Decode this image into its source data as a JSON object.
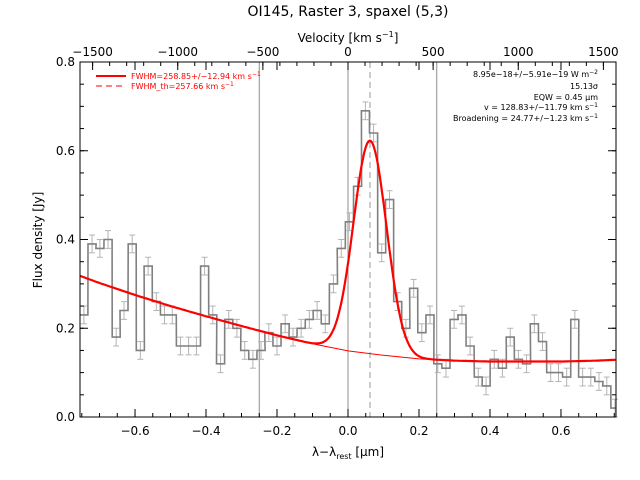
{
  "chart_data": {
    "type": "line",
    "title": "OI145, Raster 3, spaxel (5,3)",
    "xlabel": "λ−λ",
    "xlabel_sub": "rest",
    "xlabel_unit": " [μm]",
    "ylabel": "Flux density [Jy]",
    "top_xlabel": "Velocity [km s",
    "top_xlabel_sup": "−1",
    "top_xlabel_end": "]",
    "xlim": [
      -0.755,
      0.755
    ],
    "ylim": [
      0.0,
      0.8
    ],
    "top_xlim": [
      -1574,
      1574
    ],
    "x_ticks": [
      {
        "value": -0.6,
        "label": "−0.6"
      },
      {
        "value": -0.4,
        "label": "−0.4"
      },
      {
        "value": -0.2,
        "label": "−0.2"
      },
      {
        "value": 0.0,
        "label": "0.0"
      },
      {
        "value": 0.2,
        "label": "0.2"
      },
      {
        "value": 0.4,
        "label": "0.4"
      },
      {
        "value": 0.6,
        "label": "0.6"
      }
    ],
    "y_ticks": [
      {
        "value": 0.0,
        "label": "0.0"
      },
      {
        "value": 0.2,
        "label": "0.2"
      },
      {
        "value": 0.4,
        "label": "0.4"
      },
      {
        "value": 0.6,
        "label": "0.6"
      },
      {
        "value": 0.8,
        "label": "0.8"
      }
    ],
    "top_ticks": [
      {
        "value": -1500,
        "label": "−1500"
      },
      {
        "value": -1000,
        "label": "−1000"
      },
      {
        "value": -500,
        "label": "−500"
      },
      {
        "value": 0,
        "label": "0"
      },
      {
        "value": 500,
        "label": "500"
      },
      {
        "value": 1000,
        "label": "1000"
      },
      {
        "value": 1500,
        "label": "1500"
      }
    ],
    "vertical_lines": [
      -0.25,
      0.0,
      0.25
    ],
    "center_line": 0.062,
    "series": [
      {
        "kind": "histogram_with_errors",
        "color": "#808080",
        "error_color": "#b4b4b4",
        "bin_width": 0.02266,
        "x": [
          -0.744,
          -0.721,
          -0.699,
          -0.676,
          -0.653,
          -0.631,
          -0.608,
          -0.585,
          -0.563,
          -0.54,
          -0.517,
          -0.495,
          -0.472,
          -0.449,
          -0.427,
          -0.404,
          -0.381,
          -0.359,
          -0.336,
          -0.313,
          -0.291,
          -0.268,
          -0.245,
          -0.223,
          -0.2,
          -0.177,
          -0.155,
          -0.132,
          -0.109,
          -0.087,
          -0.064,
          -0.041,
          -0.019,
          0.004,
          0.027,
          0.049,
          0.072,
          0.095,
          0.117,
          0.14,
          0.163,
          0.185,
          0.208,
          0.231,
          0.253,
          0.276,
          0.299,
          0.321,
          0.344,
          0.367,
          0.389,
          0.412,
          0.435,
          0.457,
          0.48,
          0.503,
          0.525,
          0.548,
          0.571,
          0.593,
          0.616,
          0.639,
          0.661,
          0.684,
          0.707,
          0.729,
          0.752
        ],
        "y": [
          0.23,
          0.39,
          0.38,
          0.4,
          0.18,
          0.24,
          0.39,
          0.15,
          0.34,
          0.26,
          0.23,
          0.23,
          0.16,
          0.16,
          0.16,
          0.34,
          0.23,
          0.12,
          0.22,
          0.2,
          0.15,
          0.13,
          0.15,
          0.19,
          0.16,
          0.21,
          0.18,
          0.2,
          0.22,
          0.24,
          0.21,
          0.3,
          0.38,
          0.44,
          0.52,
          0.69,
          0.64,
          0.37,
          0.49,
          0.26,
          0.2,
          0.29,
          0.19,
          0.23,
          0.12,
          0.11,
          0.22,
          0.23,
          0.16,
          0.09,
          0.07,
          0.13,
          0.11,
          0.18,
          0.13,
          0.12,
          0.21,
          0.17,
          0.1,
          0.1,
          0.09,
          0.22,
          0.09,
          0.09,
          0.08,
          0.07,
          0.02
        ],
        "error": [
          0.02,
          0.02,
          0.02,
          0.02,
          0.02,
          0.02,
          0.02,
          0.02,
          0.02,
          0.02,
          0.02,
          0.02,
          0.02,
          0.02,
          0.02,
          0.02,
          0.02,
          0.02,
          0.02,
          0.02,
          0.02,
          0.02,
          0.02,
          0.02,
          0.02,
          0.02,
          0.02,
          0.02,
          0.02,
          0.02,
          0.02,
          0.02,
          0.02,
          0.02,
          0.02,
          0.02,
          0.02,
          0.02,
          0.02,
          0.02,
          0.02,
          0.02,
          0.02,
          0.02,
          0.02,
          0.02,
          0.02,
          0.02,
          0.02,
          0.02,
          0.02,
          0.02,
          0.02,
          0.02,
          0.02,
          0.02,
          0.02,
          0.02,
          0.02,
          0.02,
          0.02,
          0.02,
          0.02,
          0.02,
          0.02,
          0.02,
          0.02
        ]
      },
      {
        "kind": "continuum_fit",
        "color": "#ff0000",
        "x": [
          -0.755,
          -0.7,
          -0.6,
          -0.5,
          -0.4,
          -0.3,
          -0.2,
          -0.1,
          0.0,
          0.1,
          0.2,
          0.3,
          0.4,
          0.5,
          0.6,
          0.7,
          0.755
        ],
        "y": [
          0.318,
          0.302,
          0.275,
          0.25,
          0.227,
          0.205,
          0.184,
          0.165,
          0.149,
          0.139,
          0.131,
          0.127,
          0.125,
          0.125,
          0.125,
          0.127,
          0.129
        ]
      },
      {
        "kind": "gaussian_fit",
        "name": "FWHM=258.85+/−12.94 km s",
        "name_sup": "−1",
        "color": "#ff0000",
        "center": 0.062,
        "sigma": 0.0465,
        "amplitude": 0.48
      },
      {
        "kind": "instrument_gaussian",
        "name": "FWHM_th=257.66 km s",
        "name_sup": "−1",
        "color": "#ff0000",
        "dash": "6,4",
        "center": 0.062,
        "sigma": 0.0463,
        "amplitude": 0.478
      }
    ],
    "annotations": [
      {
        "text": "8.95e−18+/−5.91e−19 W m",
        "sup": "−2"
      },
      {
        "text": "15.13σ",
        "sup": ""
      },
      {
        "text": "EQW = 0.45 μm",
        "sup": ""
      },
      {
        "text": "v = 128.83+/−11.79 km s",
        "sup": "−1"
      },
      {
        "text": "Broadening = 24.77+/−1.23 km s",
        "sup": "−1"
      }
    ],
    "legend_position": "top-left",
    "grid": false
  }
}
